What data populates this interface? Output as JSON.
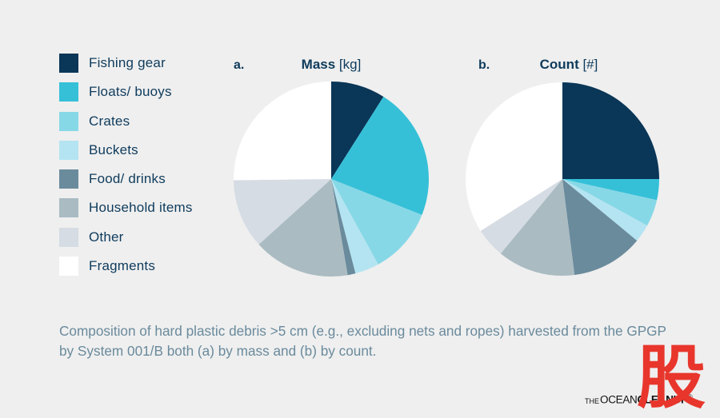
{
  "colors": {
    "Fishing gear": "#0a3657",
    "Floats/ buoys": "#35c0d8",
    "Crates": "#87d8e6",
    "Buckets": "#b4e4f1",
    "Food/ drinks": "#6a8b9c",
    "Household items": "#aabbc2",
    "Other": "#d5dce3",
    "Fragments": "#ffffff"
  },
  "legend": {
    "items": [
      {
        "label": "Fishing gear"
      },
      {
        "label": "Floats/ buoys"
      },
      {
        "label": "Crates"
      },
      {
        "label": "Buckets"
      },
      {
        "label": "Food/ drinks"
      },
      {
        "label": "Household items"
      },
      {
        "label": "Other"
      },
      {
        "label": "Fragments"
      }
    ]
  },
  "chart_data": [
    {
      "type": "pie",
      "panel": "a.",
      "title_bold": "Mass",
      "title_unit": " [kg]",
      "categories": [
        "Fishing gear",
        "Floats/ buoys",
        "Crates",
        "Buckets",
        "Food/ drinks",
        "Household items",
        "Other",
        "Fragments"
      ],
      "values": [
        9,
        22,
        11,
        4,
        1.3,
        16,
        11.5,
        25.2
      ]
    },
    {
      "type": "pie",
      "panel": "b.",
      "title_bold": "Count",
      "title_unit": " [#]",
      "categories": [
        "Fishing gear",
        "Floats/ buoys",
        "Crates",
        "Buckets",
        "Food/ drinks",
        "Household items",
        "Other",
        "Fragments"
      ],
      "values": [
        25,
        3.5,
        4.5,
        3,
        12,
        13,
        5,
        34
      ]
    }
  ],
  "caption": "Composition of hard plastic debris >5 cm (e.g., excluding nets and ropes) harvested from the GPGP by System 001/B both (a) by mass and (b) by count.",
  "logo": {
    "the": "THE",
    "ocean": "OCEAN",
    "cleanup": "CLEANUP",
    "mark": "®"
  },
  "watermark": "股"
}
